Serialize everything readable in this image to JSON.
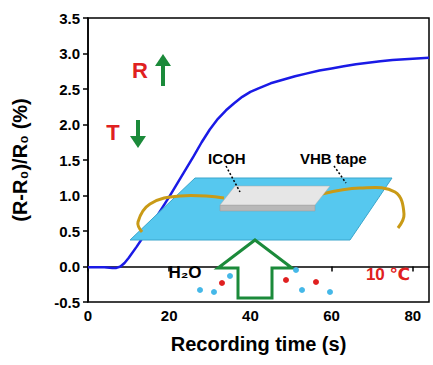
{
  "chart_data": {
    "type": "line",
    "xlabel": "Recording time (s)",
    "ylabel": "(R-R₀)/R₀ (%)",
    "x": [
      0,
      2,
      4,
      6,
      7,
      8,
      9,
      10,
      12,
      14,
      16,
      18,
      20,
      22,
      24,
      26,
      28,
      30,
      32,
      34,
      36,
      38,
      40,
      42,
      45,
      48,
      51,
      54,
      57,
      60,
      63,
      66,
      69,
      72,
      75,
      78,
      81,
      84
    ],
    "values": [
      -0.01,
      -0.01,
      -0.01,
      -0.02,
      -0.02,
      0.0,
      0.05,
      0.12,
      0.28,
      0.45,
      0.62,
      0.8,
      0.98,
      1.17,
      1.36,
      1.55,
      1.75,
      1.93,
      2.08,
      2.2,
      2.3,
      2.39,
      2.46,
      2.51,
      2.58,
      2.63,
      2.68,
      2.72,
      2.76,
      2.79,
      2.82,
      2.85,
      2.87,
      2.89,
      2.91,
      2.92,
      2.93,
      2.94
    ],
    "color": "#1a1ae6",
    "xlim": [
      0,
      84
    ],
    "xticks": [
      0,
      20,
      40,
      60,
      80
    ],
    "ylim": [
      -0.5,
      3.5
    ],
    "yticks": [
      -0.5,
      {
        "value": 0,
        "label": "0.0"
      },
      0.5,
      {
        "value": 1,
        "label": "1.0"
      },
      1.5,
      {
        "value": 2,
        "label": "2.0"
      },
      2.5,
      {
        "value": 3,
        "label": "3.0"
      },
      3.5
    ],
    "grid": false,
    "annotations": [
      "R",
      "T",
      "ICOH",
      "VHB tape",
      "H₂O",
      "10 ℃"
    ]
  }
}
